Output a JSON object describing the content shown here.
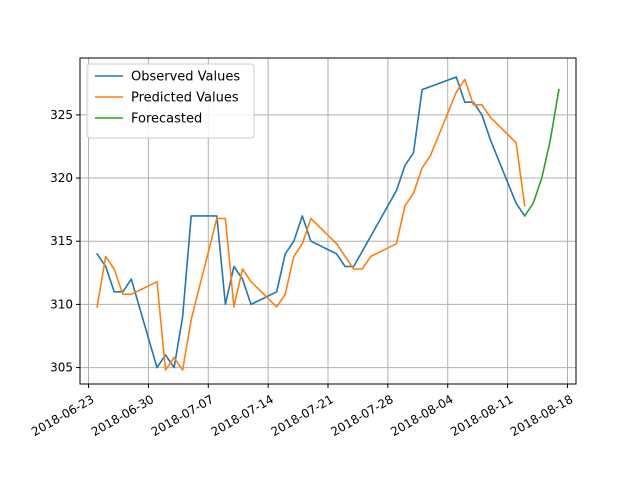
{
  "chart_data": {
    "type": "line",
    "title": "",
    "xlabel": "",
    "ylabel": "",
    "xlim": [
      "2018-06-22",
      "2018-08-19"
    ],
    "ylim": [
      303.7,
      329.5
    ],
    "grid": true,
    "legend_position": "top-left",
    "x_ticks": [
      "2018-06-23",
      "2018-06-30",
      "2018-07-07",
      "2018-07-14",
      "2018-07-21",
      "2018-07-28",
      "2018-08-04",
      "2018-08-11",
      "2018-08-18"
    ],
    "y_ticks": [
      305,
      310,
      315,
      320,
      325
    ],
    "series": [
      {
        "name": "Observed Values",
        "color": "#1f77b4",
        "points": [
          [
            "2018-06-24",
            314
          ],
          [
            "2018-06-25",
            313
          ],
          [
            "2018-06-26",
            311
          ],
          [
            "2018-06-27",
            311
          ],
          [
            "2018-06-28",
            312
          ],
          [
            "2018-07-01",
            305
          ],
          [
            "2018-07-02",
            306
          ],
          [
            "2018-07-03",
            305
          ],
          [
            "2018-07-04",
            309
          ],
          [
            "2018-07-05",
            317
          ],
          [
            "2018-07-08",
            317
          ],
          [
            "2018-07-09",
            310
          ],
          [
            "2018-07-10",
            313
          ],
          [
            "2018-07-11",
            312
          ],
          [
            "2018-07-12",
            310
          ],
          [
            "2018-07-15",
            311
          ],
          [
            "2018-07-16",
            314
          ],
          [
            "2018-07-17",
            315
          ],
          [
            "2018-07-18",
            317
          ],
          [
            "2018-07-19",
            315
          ],
          [
            "2018-07-22",
            314
          ],
          [
            "2018-07-23",
            313
          ],
          [
            "2018-07-24",
            313
          ],
          [
            "2018-07-29",
            319
          ],
          [
            "2018-07-30",
            321
          ],
          [
            "2018-07-31",
            322
          ],
          [
            "2018-08-01",
            327
          ],
          [
            "2018-08-05",
            328
          ],
          [
            "2018-08-06",
            326
          ],
          [
            "2018-08-07",
            326
          ],
          [
            "2018-08-08",
            325
          ],
          [
            "2018-08-09",
            323
          ],
          [
            "2018-08-12",
            318
          ],
          [
            "2018-08-13",
            317
          ]
        ]
      },
      {
        "name": "Predicted Values",
        "color": "#ff7f0e",
        "points": [
          [
            "2018-06-24",
            309.8
          ],
          [
            "2018-06-25",
            313.8
          ],
          [
            "2018-06-26",
            312.8
          ],
          [
            "2018-06-27",
            310.8
          ],
          [
            "2018-06-28",
            310.8
          ],
          [
            "2018-07-01",
            311.8
          ],
          [
            "2018-07-02",
            304.8
          ],
          [
            "2018-07-03",
            305.8
          ],
          [
            "2018-07-04",
            304.8
          ],
          [
            "2018-07-05",
            308.8
          ],
          [
            "2018-07-08",
            316.8
          ],
          [
            "2018-07-09",
            316.8
          ],
          [
            "2018-07-10",
            309.8
          ],
          [
            "2018-07-11",
            312.8
          ],
          [
            "2018-07-12",
            311.8
          ],
          [
            "2018-07-15",
            309.8
          ],
          [
            "2018-07-16",
            310.8
          ],
          [
            "2018-07-17",
            313.8
          ],
          [
            "2018-07-18",
            314.8
          ],
          [
            "2018-07-19",
            316.8
          ],
          [
            "2018-07-22",
            314.8
          ],
          [
            "2018-07-23",
            313.8
          ],
          [
            "2018-07-24",
            312.8
          ],
          [
            "2018-07-25",
            312.8
          ],
          [
            "2018-07-26",
            313.8
          ],
          [
            "2018-07-29",
            314.8
          ],
          [
            "2018-07-30",
            317.8
          ],
          [
            "2018-07-31",
            318.8
          ],
          [
            "2018-08-01",
            320.8
          ],
          [
            "2018-08-02",
            321.8
          ],
          [
            "2018-08-05",
            326.8
          ],
          [
            "2018-08-06",
            327.8
          ],
          [
            "2018-08-07",
            325.8
          ],
          [
            "2018-08-08",
            325.8
          ],
          [
            "2018-08-09",
            324.8
          ],
          [
            "2018-08-12",
            322.8
          ],
          [
            "2018-08-13",
            317.8
          ]
        ]
      },
      {
        "name": "Forecasted",
        "color": "#2ca02c",
        "points": [
          [
            "2018-08-13",
            317
          ],
          [
            "2018-08-14",
            318
          ],
          [
            "2018-08-15",
            320
          ],
          [
            "2018-08-16",
            323
          ],
          [
            "2018-08-17",
            327
          ]
        ]
      }
    ]
  }
}
